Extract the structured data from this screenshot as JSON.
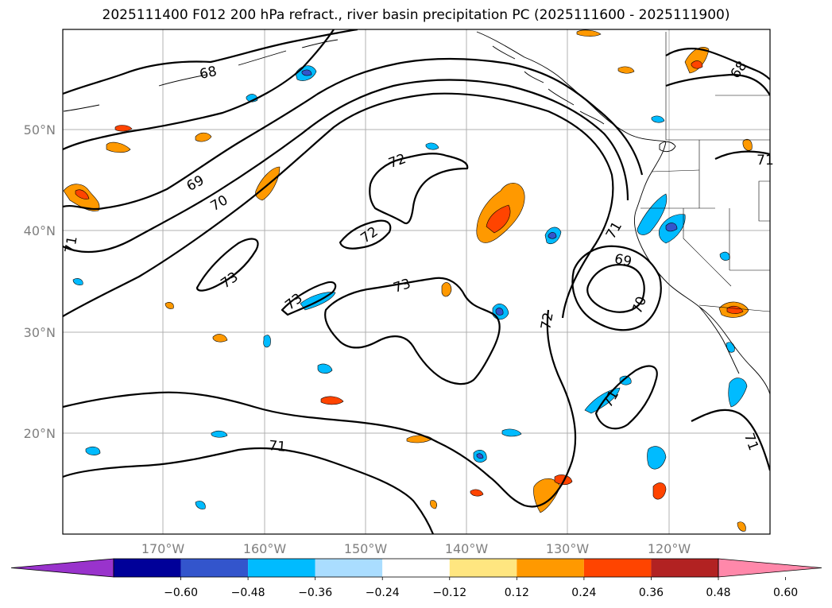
{
  "title": "2025111400 F012 200 hPa refract., river basin precipitation PC (2025111600 - 2025111900)",
  "map": {
    "lat_labels": [
      "50°N",
      "40°N",
      "30°N",
      "20°N"
    ],
    "lon_labels": [
      "170°W",
      "160°W",
      "150°W",
      "140°W",
      "130°W",
      "120°W"
    ],
    "contour_labels": [
      "68",
      "69",
      "70",
      "71",
      "72",
      "73",
      "73",
      "73",
      "72",
      "71",
      "70",
      "69",
      "72",
      "71",
      "71",
      "71",
      "71",
      "68"
    ],
    "grid": true,
    "contour_color": "#000000",
    "land_color": "#ffffff"
  },
  "colorbar": {
    "ticks": [
      "−0.60",
      "−0.48",
      "−0.36",
      "−0.24",
      "−0.12",
      "0.12",
      "0.24",
      "0.36",
      "0.48",
      "0.60"
    ],
    "colors": [
      "#9933cc",
      "#000099",
      "#3355cc",
      "#00bbff",
      "#aaddff",
      "#ffffff",
      "#ffe680",
      "#ff9900",
      "#ff4400",
      "#b22222",
      "#ff88aa"
    ],
    "extend": "both"
  }
}
